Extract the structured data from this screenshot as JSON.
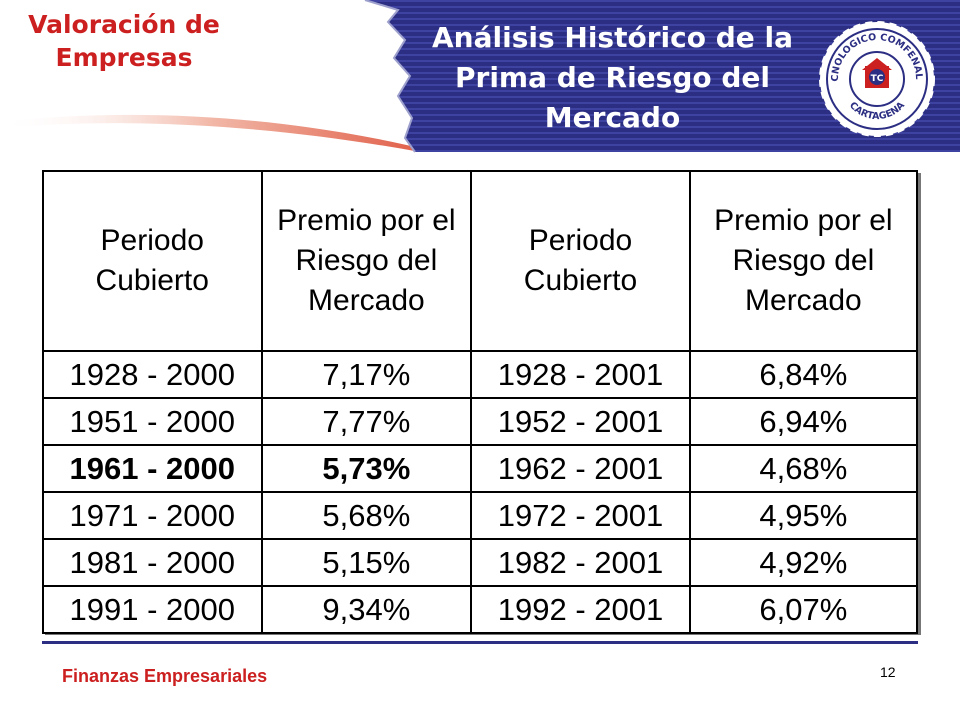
{
  "header": {
    "section_title": "Valoración de Empresas",
    "slide_title": "Análisis Histórico de la Prima de Riesgo del Mercado"
  },
  "logo": {
    "text_top": "TECNOLOGICO COMFENALCO",
    "text_bottom": "CARTAGENA",
    "monogram": "TC"
  },
  "table": {
    "headers": [
      "Periodo Cubierto",
      "Premio por el Riesgo del Mercado",
      "Periodo Cubierto",
      "Premio por el Riesgo del Mercado"
    ],
    "rows": [
      [
        "1928 - 2000",
        "7,17%",
        "1928 - 2001",
        "6,84%"
      ],
      [
        "1951 - 2000",
        "7,77%",
        "1952 - 2001",
        "6,94%"
      ],
      [
        "1961 - 2000",
        "5,73%",
        "1962 - 2001",
        "4,68%"
      ],
      [
        "1971 - 2000",
        "5,68%",
        "1972 - 2001",
        "4,95%"
      ],
      [
        "1981 - 2000",
        "5,15%",
        "1982 - 2001",
        "4,92%"
      ],
      [
        "1991 - 2000",
        "9,34%",
        "1992 - 2001",
        "6,07%"
      ]
    ]
  },
  "footer": {
    "label": "Finanzas Empresariales",
    "page_number": "12"
  },
  "colors": {
    "navy": "#2b2e82",
    "red": "#cc1f1f"
  }
}
